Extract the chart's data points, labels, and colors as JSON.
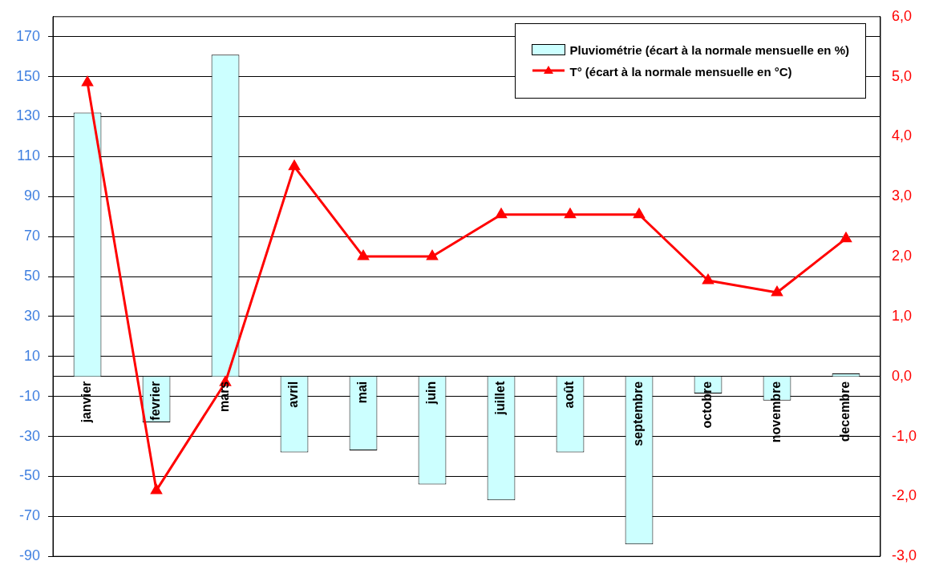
{
  "chart_data": {
    "type": "bar",
    "categories": [
      "janvier",
      "fevrier",
      "mars",
      "avril",
      "mai",
      "juin",
      "juillet",
      "août",
      "septembre",
      "octobre",
      "novembre",
      "decembre"
    ],
    "series": [
      {
        "name": "Pluviométrie (écart à la normale mensuelle en %)",
        "color": "#ccffff",
        "values": [
          132,
          -23,
          161,
          -38,
          -37,
          -54,
          -62,
          -38,
          -84,
          -8.5,
          -12,
          1.5
        ]
      },
      {
        "name": "T° (écart à la normale mensuelle en °C)",
        "type": "line",
        "axis": "y2",
        "color": "#ff0000",
        "values": [
          4.9,
          -1.9,
          -0.1,
          3.5,
          2.0,
          2.0,
          2.7,
          2.7,
          2.7,
          1.6,
          1.4,
          2.3
        ]
      }
    ],
    "ylim": [
      -90,
      180
    ],
    "yticks": [
      -90,
      -70,
      -50,
      -30,
      -10,
      10,
      30,
      50,
      70,
      90,
      110,
      130,
      150,
      170
    ],
    "y2lim": [
      -3,
      6
    ],
    "y2ticks": [
      {
        "value": -3,
        "label": "-3,0"
      },
      {
        "value": -2,
        "label": "-2,0"
      },
      {
        "value": -1,
        "label": "-1,0"
      },
      {
        "value": 0,
        "label": "0,0"
      },
      {
        "value": 1,
        "label": "1,0"
      },
      {
        "value": 2,
        "label": "2,0"
      },
      {
        "value": 3,
        "label": "3,0"
      },
      {
        "value": 4,
        "label": "4,0"
      },
      {
        "value": 5,
        "label": "5,0"
      },
      {
        "value": 6,
        "label": "6,0"
      }
    ],
    "grid": "y",
    "legend": "top right",
    "marker": "triangle",
    "line_style": "solid"
  }
}
